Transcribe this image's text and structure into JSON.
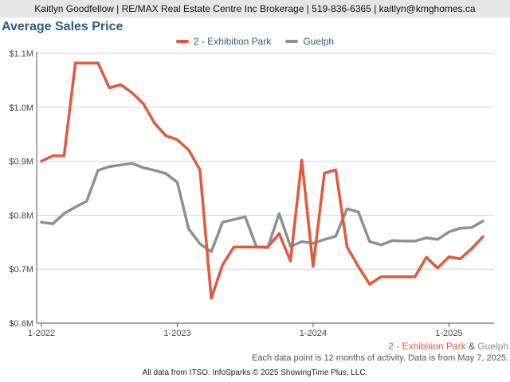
{
  "header": {
    "contact": "Kaitlyn Goodfellow | RE/MAX Real Estate Centre Inc Brokerage | 519-836-6365 | kaitlyn@kmghomes.ca"
  },
  "colors": {
    "exhibition": "#e15a3c",
    "guelph": "#8c9290",
    "title": "#2f5a7a"
  },
  "chart_data": {
    "type": "line",
    "title": "Average Sales Price",
    "xlabel": "",
    "ylabel": "",
    "ylim": [
      600000,
      1100000
    ],
    "yticks": [
      600000,
      700000,
      800000,
      900000,
      1000000,
      1100000
    ],
    "ytick_labels": [
      "$0.6M",
      "$0.7M",
      "$0.8M",
      "$0.9M",
      "$1.0M",
      "$1.1M"
    ],
    "xticks": [
      "1-2022",
      "1-2023",
      "1-2024",
      "1-2025"
    ],
    "x": [
      "1-2022",
      "2-2022",
      "3-2022",
      "4-2022",
      "5-2022",
      "6-2022",
      "7-2022",
      "8-2022",
      "9-2022",
      "10-2022",
      "11-2022",
      "12-2022",
      "1-2023",
      "2-2023",
      "3-2023",
      "4-2023",
      "5-2023",
      "6-2023",
      "7-2023",
      "8-2023",
      "9-2023",
      "10-2023",
      "11-2023",
      "12-2023",
      "1-2024",
      "2-2024",
      "3-2024",
      "4-2024",
      "5-2024",
      "6-2024",
      "7-2024",
      "8-2024",
      "9-2024",
      "10-2024",
      "11-2024",
      "12-2024",
      "1-2025",
      "2-2025",
      "3-2025",
      "4-2025"
    ],
    "legend_position": "top-center",
    "grid": true,
    "series": [
      {
        "name": "2 - Exhibition Park",
        "values": [
          900000,
          910000,
          910000,
          1082000,
          1082000,
          1082000,
          1036000,
          1042000,
          1027000,
          1007000,
          970000,
          947000,
          940000,
          921000,
          884000,
          646000,
          708000,
          741000,
          741000,
          741000,
          741000,
          766000,
          715000,
          902000,
          705000,
          878000,
          884000,
          741000,
          705000,
          672000,
          686000,
          686000,
          686000,
          686000,
          722000,
          702000,
          723000,
          719000,
          738000,
          760000
        ]
      },
      {
        "name": "Guelph",
        "values": [
          787000,
          784000,
          803000,
          815000,
          826000,
          883000,
          890000,
          893000,
          896000,
          888000,
          883000,
          877000,
          861000,
          775000,
          747000,
          732000,
          787000,
          792000,
          797000,
          741000,
          740000,
          803000,
          742000,
          751000,
          748000,
          755000,
          761000,
          812000,
          806000,
          751000,
          745000,
          753000,
          752000,
          752000,
          758000,
          755000,
          769000,
          776000,
          777000,
          789000
        ]
      }
    ]
  },
  "footer": {
    "legend_a": "2 - Exhibition Park",
    "legend_sep": "&",
    "legend_b": "Guelph",
    "note": "Each data point is 12 months of activity. Data is from May 7, 2025.",
    "source": "All data from ITSO. InfoSparks © 2025 ShowingTime Plus, LLC."
  }
}
